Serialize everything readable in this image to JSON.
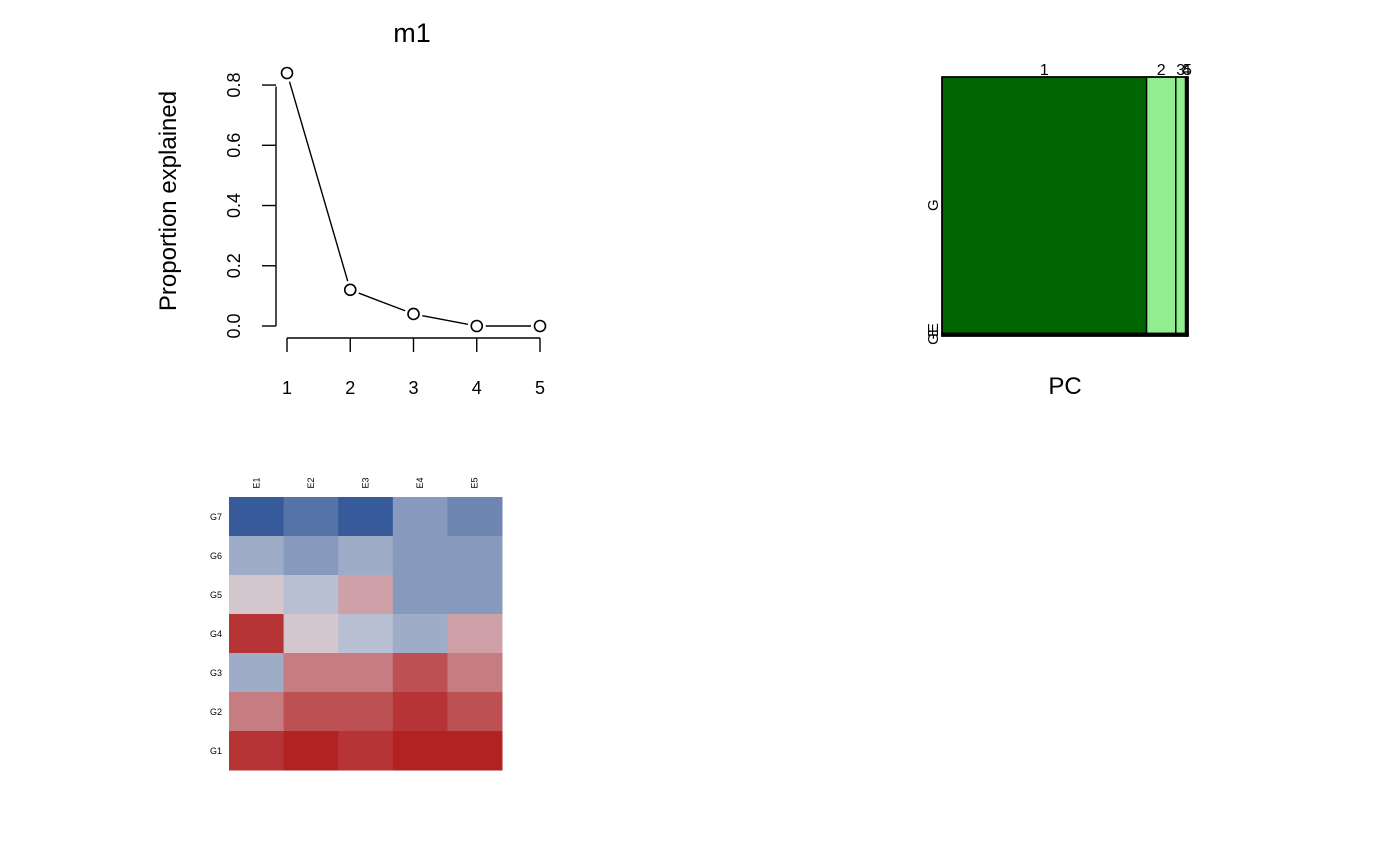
{
  "chart_data": [
    {
      "type": "line",
      "title": "m1",
      "xlabel": "",
      "ylabel": "Proportion explained",
      "x": [
        1,
        2,
        3,
        4,
        5
      ],
      "values": [
        0.84,
        0.12,
        0.04,
        0.0,
        0.0
      ],
      "xticks": [
        "1",
        "2",
        "3",
        "4",
        "5"
      ],
      "yticks": [
        "0.0",
        "0.2",
        "0.4",
        "0.6",
        "0.8"
      ],
      "xlim": [
        1,
        5
      ],
      "ylim": [
        0,
        0.84
      ],
      "markers": "open-circle",
      "grid": false
    },
    {
      "type": "bar",
      "subtype": "mosaic",
      "xlabel": "PC",
      "ylabel": "",
      "categories": [
        "1",
        "2",
        "3",
        "4",
        "5"
      ],
      "widths": [
        0.84,
        0.12,
        0.04,
        0.005,
        0.005
      ],
      "row_labels": [
        "G",
        "E",
        "GE"
      ],
      "rows": [
        {
          "name": "G",
          "share": 0.99
        },
        {
          "name": "GE",
          "share": 0.005
        },
        {
          "name": "E",
          "share": 0.005
        }
      ],
      "colors": [
        "#006400",
        "#90ee90",
        "#90ee90",
        "#90ee90",
        "#90ee90"
      ],
      "label_colors": [
        "#000000",
        "#000000",
        "#000000",
        "#ff0000",
        "#000000"
      ],
      "grid": false
    },
    {
      "type": "heatmap",
      "columns": [
        "E1",
        "E2",
        "E3",
        "E4",
        "E5"
      ],
      "rows": [
        "G7",
        "G6",
        "G5",
        "G4",
        "G3",
        "G2",
        "G1"
      ],
      "values": [
        [
          -1.0,
          -0.8,
          -1.0,
          -0.5,
          -0.65
        ],
        [
          -0.35,
          -0.5,
          -0.35,
          -0.5,
          -0.5
        ],
        [
          0.1,
          -0.2,
          0.3,
          -0.5,
          -0.5
        ],
        [
          0.9,
          0.1,
          -0.2,
          -0.35,
          0.3
        ],
        [
          -0.35,
          0.5,
          0.5,
          0.75,
          0.5
        ],
        [
          0.5,
          0.75,
          0.75,
          0.9,
          0.75
        ],
        [
          0.9,
          1.0,
          0.9,
          1.0,
          1.0
        ]
      ],
      "low_color": "#365a9a",
      "mid_color": "#d8d8e0",
      "high_color": "#b22222",
      "grid": false
    }
  ]
}
